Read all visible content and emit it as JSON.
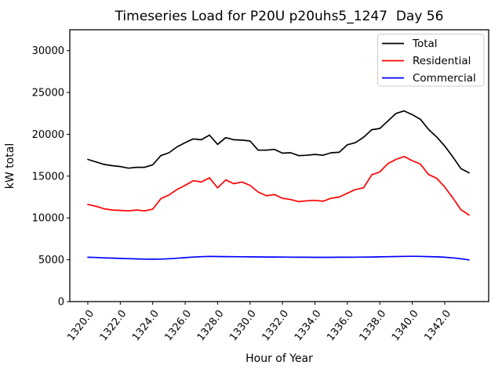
{
  "figure": {
    "background": "#ffffff"
  },
  "chart_data": {
    "type": "line",
    "title": "Timeseries Load for P20U p20uhs5_1247  Day 56",
    "xlabel": "Hour of Year",
    "ylabel": "kW total",
    "xlim": [
      1318.89,
      1344.71
    ],
    "ylim": [
      0,
      32500
    ],
    "grid": false,
    "legend_position": "upper right",
    "xticks": {
      "values": [
        1320,
        1322,
        1324,
        1326,
        1328,
        1330,
        1332,
        1334,
        1336,
        1338,
        1340,
        1342
      ],
      "labels": [
        "1320.0",
        "1322.0",
        "1324.0",
        "1326.0",
        "1328.0",
        "1330.0",
        "1332.0",
        "1334.0",
        "1336.0",
        "1338.0",
        "1340.0",
        "1342.0"
      ]
    },
    "yticks": {
      "values": [
        0,
        5000,
        10000,
        15000,
        20000,
        25000,
        30000
      ],
      "labels": [
        "0",
        "5000",
        "10000",
        "15000",
        "20000",
        "25000",
        "30000"
      ]
    },
    "x": [
      1320,
      1320.5,
      1321,
      1321.5,
      1322,
      1322.5,
      1323,
      1323.5,
      1324,
      1324.5,
      1325,
      1325.5,
      1326,
      1326.5,
      1327,
      1327.5,
      1328,
      1328.5,
      1329,
      1329.5,
      1330,
      1330.5,
      1331,
      1331.5,
      1332,
      1332.5,
      1333,
      1333.5,
      1334,
      1334.5,
      1335,
      1335.5,
      1336,
      1336.5,
      1337,
      1337.5,
      1338,
      1338.5,
      1339,
      1339.5,
      1340,
      1340.5,
      1341,
      1341.5,
      1342,
      1342.5,
      1343,
      1343.5
    ],
    "series": [
      {
        "name": "Total",
        "color": "#000000",
        "values": [
          17000,
          16700,
          16400,
          16250,
          16150,
          15950,
          16050,
          16050,
          16350,
          17450,
          17800,
          18500,
          19000,
          19450,
          19350,
          19900,
          18800,
          19600,
          19350,
          19300,
          19200,
          18100,
          18100,
          18200,
          17750,
          17800,
          17450,
          17500,
          17600,
          17500,
          17800,
          17850,
          18750,
          19000,
          19650,
          20550,
          20700,
          21600,
          22500,
          22800,
          22350,
          21800,
          20600,
          19700,
          18600,
          17300,
          15900,
          15400
        ]
      },
      {
        "name": "Residential",
        "color": "#ff0000",
        "values": [
          11600,
          11400,
          11100,
          10950,
          10900,
          10850,
          10950,
          10850,
          11050,
          12300,
          12750,
          13400,
          13900,
          14450,
          14300,
          14800,
          13600,
          14550,
          14100,
          14300,
          13900,
          13100,
          12650,
          12800,
          12350,
          12200,
          11950,
          12050,
          12100,
          12000,
          12350,
          12500,
          12950,
          13400,
          13600,
          15150,
          15500,
          16500,
          17000,
          17350,
          16850,
          16450,
          15200,
          14750,
          13700,
          12400,
          11000,
          10350
        ]
      },
      {
        "name": "Commercial",
        "color": "#0000ff",
        "values": [
          5300,
          5270,
          5230,
          5200,
          5160,
          5130,
          5100,
          5080,
          5070,
          5080,
          5120,
          5180,
          5250,
          5320,
          5370,
          5400,
          5390,
          5380,
          5370,
          5360,
          5350,
          5340,
          5330,
          5330,
          5320,
          5310,
          5300,
          5300,
          5290,
          5290,
          5290,
          5300,
          5300,
          5310,
          5320,
          5330,
          5350,
          5370,
          5390,
          5400,
          5410,
          5400,
          5380,
          5350,
          5300,
          5230,
          5120,
          4980
        ]
      }
    ]
  }
}
